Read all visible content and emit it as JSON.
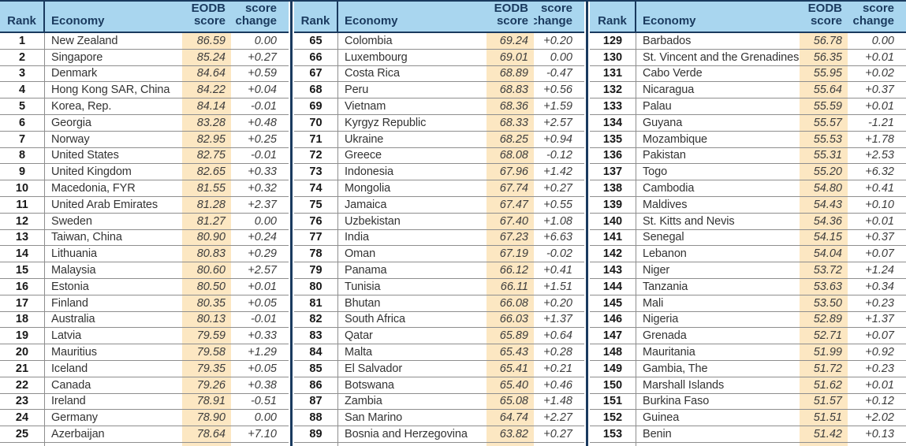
{
  "title": "Ease of doing business rankings",
  "colors": {
    "header_bg": "#a9d6ef",
    "navy": "#1a3a5e",
    "score_highlight": "#fce7c2",
    "row_line": "#8e8e8e",
    "body_text": "#333333"
  },
  "header": {
    "rank": "Rank",
    "economy": "Economy",
    "eodb_line1": "EODB",
    "eodb_line2": "score",
    "change_line1": "score",
    "change_line2": "change"
  },
  "panels": [
    {
      "rows": [
        [
          "1",
          "New Zealand",
          "86.59",
          "0.00"
        ],
        [
          "2",
          "Singapore",
          "85.24",
          "+0.27"
        ],
        [
          "3",
          "Denmark",
          "84.64",
          "+0.59"
        ],
        [
          "4",
          "Hong Kong SAR, China",
          "84.22",
          "+0.04"
        ],
        [
          "5",
          "Korea, Rep.",
          "84.14",
          "-0.01"
        ],
        [
          "6",
          "Georgia",
          "83.28",
          "+0.48"
        ],
        [
          "7",
          "Norway",
          "82.95",
          "+0.25"
        ],
        [
          "8",
          "United States",
          "82.75",
          "-0.01"
        ],
        [
          "9",
          "United Kingdom",
          "82.65",
          "+0.33"
        ],
        [
          "10",
          "Macedonia, FYR",
          "81.55",
          "+0.32"
        ],
        [
          "11",
          "United Arab Emirates",
          "81.28",
          "+2.37"
        ],
        [
          "12",
          "Sweden",
          "81.27",
          "0.00"
        ],
        [
          "13",
          "Taiwan, China",
          "80.90",
          "+0.24"
        ],
        [
          "14",
          "Lithuania",
          "80.83",
          "+0.29"
        ],
        [
          "15",
          "Malaysia",
          "80.60",
          "+2.57"
        ],
        [
          "16",
          "Estonia",
          "80.50",
          "+0.01"
        ],
        [
          "17",
          "Finland",
          "80.35",
          "+0.05"
        ],
        [
          "18",
          "Australia",
          "80.13",
          "-0.01"
        ],
        [
          "19",
          "Latvia",
          "79.59",
          "+0.33"
        ],
        [
          "20",
          "Mauritius",
          "79.58",
          "+1.29"
        ],
        [
          "21",
          "Iceland",
          "79.35",
          "+0.05"
        ],
        [
          "22",
          "Canada",
          "79.26",
          "+0.38"
        ],
        [
          "23",
          "Ireland",
          "78.91",
          "-0.51"
        ],
        [
          "24",
          "Germany",
          "78.90",
          "0.00"
        ],
        [
          "25",
          "Azerbaijan",
          "78.64",
          "+7.10"
        ]
      ]
    },
    {
      "rows": [
        [
          "65",
          "Colombia",
          "69.24",
          "+0.20"
        ],
        [
          "66",
          "Luxembourg",
          "69.01",
          "0.00"
        ],
        [
          "67",
          "Costa Rica",
          "68.89",
          "-0.47"
        ],
        [
          "68",
          "Peru",
          "68.83",
          "+0.56"
        ],
        [
          "69",
          "Vietnam",
          "68.36",
          "+1.59"
        ],
        [
          "70",
          "Kyrgyz Republic",
          "68.33",
          "+2.57"
        ],
        [
          "71",
          "Ukraine",
          "68.25",
          "+0.94"
        ],
        [
          "72",
          "Greece",
          "68.08",
          "-0.12"
        ],
        [
          "73",
          "Indonesia",
          "67.96",
          "+1.42"
        ],
        [
          "74",
          "Mongolia",
          "67.74",
          "+0.27"
        ],
        [
          "75",
          "Jamaica",
          "67.47",
          "+0.55"
        ],
        [
          "76",
          "Uzbekistan",
          "67.40",
          "+1.08"
        ],
        [
          "77",
          "India",
          "67.23",
          "+6.63"
        ],
        [
          "78",
          "Oman",
          "67.19",
          "-0.02"
        ],
        [
          "79",
          "Panama",
          "66.12",
          "+0.41"
        ],
        [
          "80",
          "Tunisia",
          "66.11",
          "+1.51"
        ],
        [
          "81",
          "Bhutan",
          "66.08",
          "+0.20"
        ],
        [
          "82",
          "South Africa",
          "66.03",
          "+1.37"
        ],
        [
          "83",
          "Qatar",
          "65.89",
          "+0.64"
        ],
        [
          "84",
          "Malta",
          "65.43",
          "+0.28"
        ],
        [
          "85",
          "El Salvador",
          "65.41",
          "+0.21"
        ],
        [
          "86",
          "Botswana",
          "65.40",
          "+0.46"
        ],
        [
          "87",
          "Zambia",
          "65.08",
          "+1.48"
        ],
        [
          "88",
          "San Marino",
          "64.74",
          "+2.27"
        ],
        [
          "89",
          "Bosnia and Herzegovina",
          "63.82",
          "+0.27"
        ]
      ]
    },
    {
      "rows": [
        [
          "129",
          "Barbados",
          "56.78",
          "0.00"
        ],
        [
          "130",
          "St. Vincent and the Grenadines",
          "56.35",
          "+0.01"
        ],
        [
          "131",
          "Cabo Verde",
          "55.95",
          "+0.02"
        ],
        [
          "132",
          "Nicaragua",
          "55.64",
          "+0.37"
        ],
        [
          "133",
          "Palau",
          "55.59",
          "+0.01"
        ],
        [
          "134",
          "Guyana",
          "55.57",
          "-1.21"
        ],
        [
          "135",
          "Mozambique",
          "55.53",
          "+1.78"
        ],
        [
          "136",
          "Pakistan",
          "55.31",
          "+2.53"
        ],
        [
          "137",
          "Togo",
          "55.20",
          "+6.32"
        ],
        [
          "138",
          "Cambodia",
          "54.80",
          "+0.41"
        ],
        [
          "139",
          "Maldives",
          "54.43",
          "+0.10"
        ],
        [
          "140",
          "St. Kitts and Nevis",
          "54.36",
          "+0.01"
        ],
        [
          "141",
          "Senegal",
          "54.15",
          "+0.37"
        ],
        [
          "142",
          "Lebanon",
          "54.04",
          "+0.07"
        ],
        [
          "143",
          "Niger",
          "53.72",
          "+1.24"
        ],
        [
          "144",
          "Tanzania",
          "53.63",
          "+0.34"
        ],
        [
          "145",
          "Mali",
          "53.50",
          "+0.23"
        ],
        [
          "146",
          "Nigeria",
          "52.89",
          "+1.37"
        ],
        [
          "147",
          "Grenada",
          "52.71",
          "+0.07"
        ],
        [
          "148",
          "Mauritania",
          "51.99",
          "+0.92"
        ],
        [
          "149",
          "Gambia, The",
          "51.72",
          "+0.23"
        ],
        [
          "150",
          "Marshall Islands",
          "51.62",
          "+0.01"
        ],
        [
          "151",
          "Burkina Faso",
          "51.57",
          "+0.12"
        ],
        [
          "152",
          "Guinea",
          "51.51",
          "+2.02"
        ],
        [
          "153",
          "Benin",
          "51.42",
          "+0.13"
        ]
      ]
    }
  ]
}
